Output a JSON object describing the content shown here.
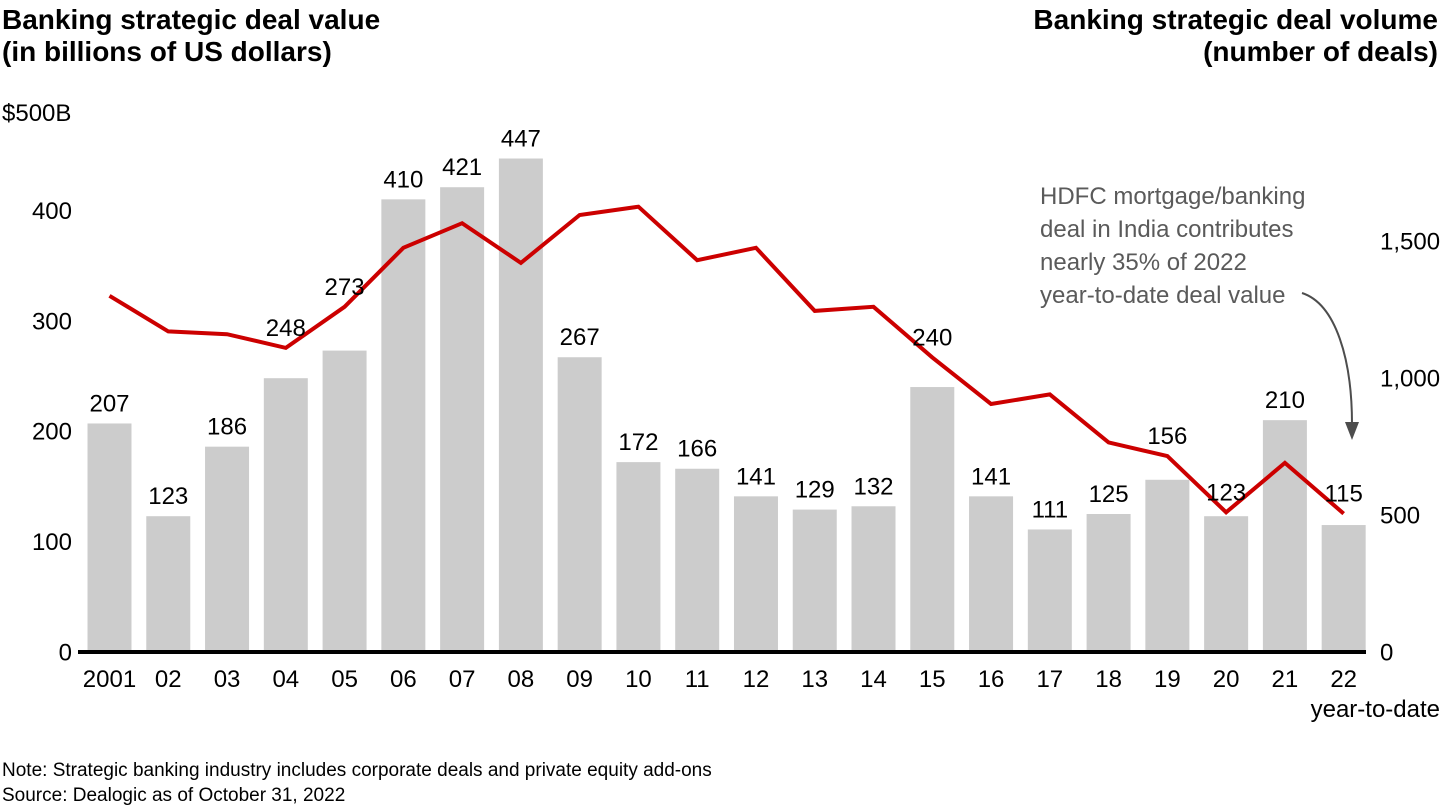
{
  "titles": {
    "left_line1": "Banking strategic deal value",
    "left_line2": "(in billions of US dollars)",
    "right_line1": "Banking strategic deal volume",
    "right_line2": "(number of deals)"
  },
  "chart_data": {
    "type": "bar",
    "categories": [
      "2001",
      "02",
      "03",
      "04",
      "05",
      "06",
      "07",
      "08",
      "09",
      "10",
      "11",
      "12",
      "13",
      "14",
      "15",
      "16",
      "17",
      "18",
      "19",
      "20",
      "21",
      "22"
    ],
    "x_axis_note": "year-to-date",
    "series": [
      {
        "name": "Banking strategic deal value (in billions of US dollars)",
        "type": "bar",
        "axis": "left",
        "color": "#cccccc",
        "values": [
          207,
          123,
          186,
          248,
          273,
          410,
          421,
          447,
          267,
          172,
          166,
          141,
          129,
          132,
          240,
          141,
          111,
          125,
          156,
          123,
          210,
          115
        ]
      },
      {
        "name": "Banking strategic deal volume (number of deals)",
        "type": "line",
        "axis": "right",
        "color": "#cc0000",
        "values": [
          1300,
          1170,
          1160,
          1110,
          1260,
          1475,
          1565,
          1420,
          1595,
          1625,
          1430,
          1475,
          1245,
          1260,
          1075,
          905,
          940,
          765,
          715,
          510,
          690,
          505
        ]
      }
    ],
    "left_axis": {
      "max_label": "$500B",
      "ticks": [
        0,
        100,
        200,
        300,
        400
      ],
      "range": [
        0,
        500
      ],
      "grid": false
    },
    "right_axis": {
      "tick_labels": [
        "0",
        "500",
        "1,000",
        "1,500"
      ],
      "tick_values": [
        0,
        500,
        1000,
        1500
      ],
      "range": [
        0,
        1660
      ]
    },
    "legend_position": "none",
    "bar_labels_shown": true
  },
  "annotation": {
    "lines": [
      "HDFC mortgage/banking",
      "deal in India contributes",
      "nearly 35% of 2022",
      "year-to-date deal value"
    ],
    "arrow_color": "#4d4d4d"
  },
  "footer": {
    "note": "Note: Strategic banking industry includes corporate deals and private equity add-ons",
    "source": "Source: Dealogic as of October 31, 2022"
  }
}
